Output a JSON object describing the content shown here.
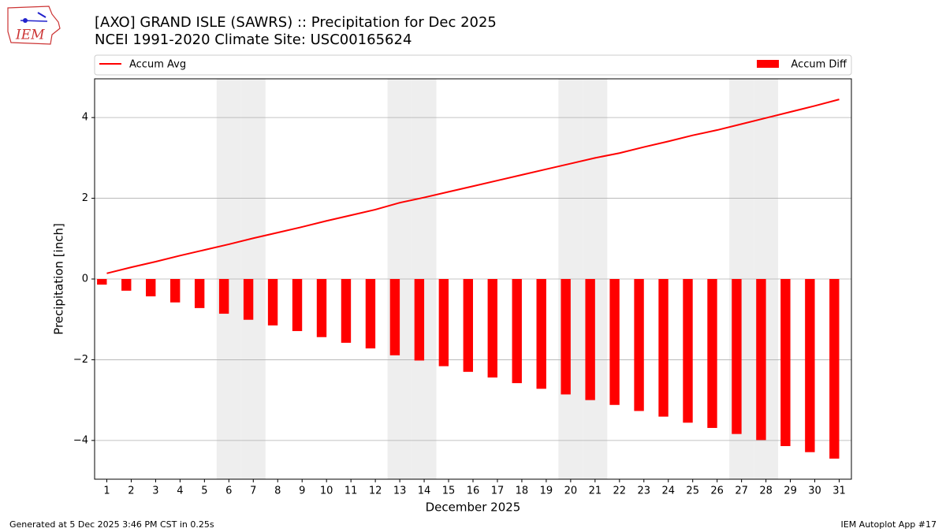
{
  "chart_data": {
    "type": "combo",
    "logo_text": "IEM",
    "title": "[AXO] GRAND ISLE (SAWRS) :: Precipitation for Dec 2025",
    "subtitle": "NCEI 1991-2020 Climate Site: USC00165624",
    "xlabel": "December 2025",
    "ylabel": "Precipitation [inch]",
    "x": [
      1,
      2,
      3,
      4,
      5,
      6,
      7,
      8,
      9,
      10,
      11,
      12,
      13,
      14,
      15,
      16,
      17,
      18,
      19,
      20,
      21,
      22,
      23,
      24,
      25,
      26,
      27,
      28,
      29,
      30,
      31
    ],
    "xlim": [
      0.5,
      31.5
    ],
    "xticks": [
      1,
      2,
      3,
      4,
      5,
      6,
      7,
      8,
      9,
      10,
      11,
      12,
      13,
      14,
      15,
      16,
      17,
      18,
      19,
      20,
      21,
      22,
      23,
      24,
      25,
      26,
      27,
      28,
      29,
      30,
      31
    ],
    "ylim": [
      -4.96,
      4.96
    ],
    "yticks": [
      {
        "value": -4,
        "label": "−4"
      },
      {
        "value": -2,
        "label": "−2"
      },
      0,
      2,
      4
    ],
    "grid": true,
    "highlight_days": [
      6,
      7,
      13,
      14,
      20,
      21,
      27,
      28
    ],
    "highlight_color": "#eeeeee",
    "series": [
      {
        "name": "Accum Avg",
        "type": "line",
        "color": "#ff0000",
        "values": [
          0.14,
          0.29,
          0.43,
          0.58,
          0.72,
          0.86,
          1.01,
          1.15,
          1.29,
          1.44,
          1.58,
          1.72,
          1.89,
          2.02,
          2.16,
          2.3,
          2.44,
          2.58,
          2.72,
          2.86,
          3.0,
          3.12,
          3.27,
          3.41,
          3.56,
          3.69,
          3.84,
          3.99,
          4.14,
          4.29,
          4.45
        ]
      },
      {
        "name": "Accum Diff",
        "type": "bar",
        "color": "#ff0000",
        "values": [
          -0.14,
          -0.29,
          -0.43,
          -0.58,
          -0.72,
          -0.86,
          -1.01,
          -1.15,
          -1.29,
          -1.44,
          -1.58,
          -1.72,
          -1.89,
          -2.02,
          -2.16,
          -2.3,
          -2.44,
          -2.58,
          -2.72,
          -2.86,
          -3.0,
          -3.12,
          -3.27,
          -3.41,
          -3.56,
          -3.69,
          -3.84,
          -3.99,
          -4.14,
          -4.29,
          -4.45
        ]
      }
    ],
    "footer_left": "Generated at 5 Dec 2025 3:46 PM CST in 0.25s",
    "footer_right": "IEM Autoplot App #17"
  }
}
